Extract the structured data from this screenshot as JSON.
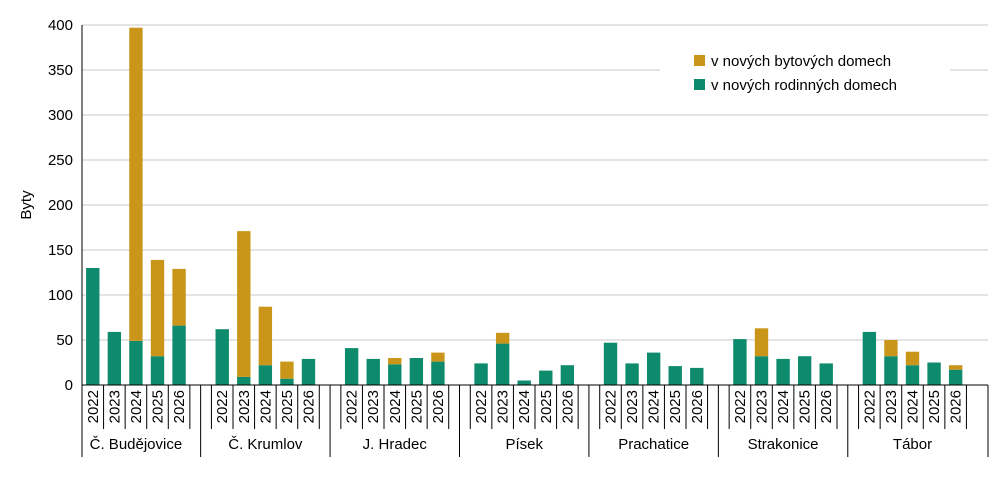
{
  "chart_data": {
    "type": "bar",
    "stacked": true,
    "ylabel": "Byty",
    "ylim": [
      0,
      400
    ],
    "yticks": [
      0,
      50,
      100,
      150,
      200,
      250,
      300,
      350,
      400
    ],
    "grid": true,
    "legend_position": "top-right",
    "groups": [
      {
        "name": "Č. Budějovice",
        "years": [
          "2022",
          "2023",
          "2024",
          "2025",
          "2026"
        ]
      },
      {
        "name": "Č. Krumlov",
        "years": [
          "2022",
          "2023",
          "2024",
          "2025",
          "2026"
        ]
      },
      {
        "name": "J. Hradec",
        "years": [
          "2022",
          "2023",
          "2024",
          "2025",
          "2026"
        ]
      },
      {
        "name": "Písek",
        "years": [
          "2022",
          "2023",
          "2024",
          "2025",
          "2026"
        ]
      },
      {
        "name": "Prachatice",
        "years": [
          "2022",
          "2023",
          "2024",
          "2025",
          "2026"
        ]
      },
      {
        "name": "Strakonice",
        "years": [
          "2022",
          "2023",
          "2024",
          "2025",
          "2026"
        ]
      },
      {
        "name": "Tábor",
        "years": [
          "2022",
          "2023",
          "2024",
          "2025",
          "2026"
        ]
      }
    ],
    "series": [
      {
        "name": "v nových rodinných domech",
        "color": "#0e8a6c",
        "values": [
          [
            130,
            59,
            49,
            32,
            66
          ],
          [
            62,
            9,
            22,
            7,
            29
          ],
          [
            41,
            29,
            23,
            30,
            26
          ],
          [
            24,
            46,
            5,
            16,
            22
          ],
          [
            47,
            24,
            36,
            21,
            19
          ],
          [
            51,
            32,
            29,
            32,
            24
          ],
          [
            59,
            32,
            22,
            25,
            17
          ]
        ]
      },
      {
        "name": "v nových bytových domech",
        "color": "#c9961a",
        "values": [
          [
            0,
            0,
            348,
            107,
            63
          ],
          [
            0,
            162,
            65,
            19,
            0
          ],
          [
            0,
            0,
            7,
            0,
            10
          ],
          [
            0,
            12,
            0,
            0,
            0
          ],
          [
            0,
            0,
            0,
            0,
            0
          ],
          [
            0,
            31,
            0,
            0,
            0
          ],
          [
            0,
            18,
            15,
            0,
            5
          ]
        ]
      }
    ],
    "legend": [
      {
        "label": "v nových bytových domech",
        "color": "#c9961a"
      },
      {
        "label": "v nových rodinných domech",
        "color": "#0e8a6c"
      }
    ]
  }
}
